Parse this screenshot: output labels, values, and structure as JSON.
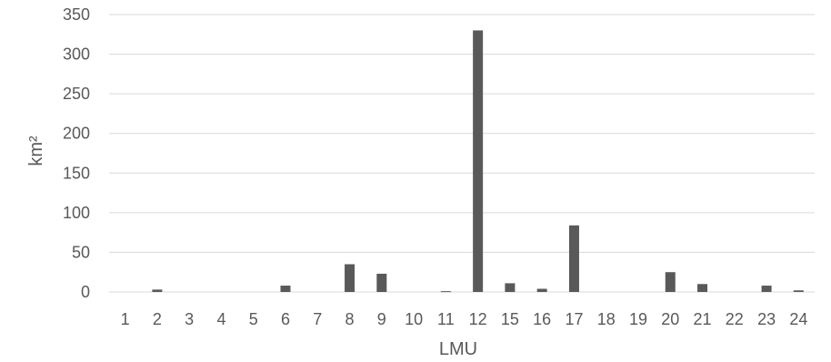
{
  "chart_data": {
    "type": "bar",
    "title": "",
    "xlabel": "LMU",
    "ylabel": "km²",
    "ylim": [
      0,
      350
    ],
    "yticks": [
      0,
      50,
      100,
      150,
      200,
      250,
      300,
      350
    ],
    "grid": true,
    "legend": "none",
    "categories": [
      "1",
      "2",
      "3",
      "4",
      "5",
      "6",
      "7",
      "8",
      "9",
      "10",
      "11",
      "12",
      "15",
      "16",
      "17",
      "18",
      "19",
      "20",
      "21",
      "22",
      "23",
      "24"
    ],
    "values": [
      0,
      3,
      0,
      0,
      0,
      8,
      0,
      35,
      23,
      0,
      1,
      330,
      11,
      4,
      84,
      0,
      0,
      25,
      10,
      0,
      8,
      2
    ],
    "bar_color": "#595959",
    "grid_color": "#d9d9d9"
  }
}
